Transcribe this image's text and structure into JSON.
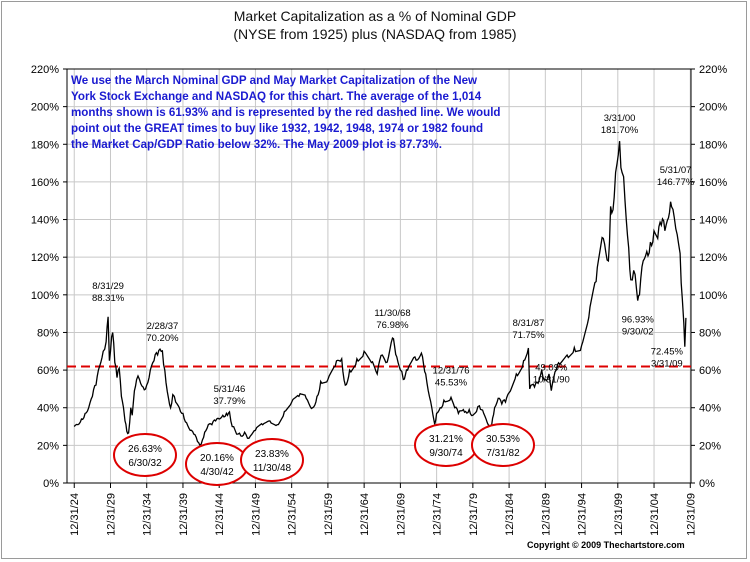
{
  "title_line1": "Market Capitalization as a % of Nominal GDP",
  "title_line2": "(NYSE from 1925) plus (NASDAQ from 1985)",
  "note": "We use the March Nominal GDP and May Market Capitalization of the New York Stock Exchange and NASDAQ for this chart.  The average of the 1,014 months shown is 61.93% and is represented by the red dashed line.  We would point out the GREAT times to buy like 1932, 1942, 1948, 1974 or 1982 found the Market Cap/GDP Ratio below 32%.  The May 2009 plot is 87.73%.",
  "copyright": "Copyright © 2009 Thechartstore.com",
  "colors": {
    "line": "#000000",
    "average": "#dd0000",
    "note_text": "#1a1ad0",
    "circle": "#dd0000",
    "grid": "#c8c8c8"
  },
  "chart_data": {
    "type": "line",
    "title": "Market Capitalization as a % of Nominal GDP",
    "subtitle": "(NYSE from 1925) plus (NASDAQ from 1985)",
    "ylim": [
      0,
      220
    ],
    "xlim": [
      "12/31/24",
      "12/31/09"
    ],
    "y_ticks": [
      "0%",
      "20%",
      "40%",
      "60%",
      "80%",
      "100%",
      "120%",
      "140%",
      "160%",
      "180%",
      "200%",
      "220%"
    ],
    "x_ticks": [
      "12/31/24",
      "12/31/29",
      "12/31/34",
      "12/31/39",
      "12/31/44",
      "12/31/49",
      "12/31/54",
      "12/31/59",
      "12/31/64",
      "12/31/69",
      "12/31/74",
      "12/31/79",
      "12/31/84",
      "12/31/89",
      "12/31/94",
      "12/31/99",
      "12/31/04",
      "12/31/09"
    ],
    "grid": true,
    "average_line": 61.93,
    "series": [
      {
        "points": [
          [
            1925.0,
            30
          ],
          [
            1925.5,
            31
          ],
          [
            1926.0,
            34
          ],
          [
            1926.5,
            37
          ],
          [
            1927.0,
            40
          ],
          [
            1927.5,
            46
          ],
          [
            1928.0,
            52
          ],
          [
            1928.5,
            62
          ],
          [
            1929.0,
            70
          ],
          [
            1929.4,
            75
          ],
          [
            1929.67,
            88.31
          ],
          [
            1929.85,
            65
          ],
          [
            1930.0,
            70
          ],
          [
            1930.3,
            80
          ],
          [
            1930.6,
            64
          ],
          [
            1930.9,
            56
          ],
          [
            1931.2,
            61
          ],
          [
            1931.5,
            46
          ],
          [
            1931.8,
            40
          ],
          [
            1932.0,
            33
          ],
          [
            1932.25,
            27.5
          ],
          [
            1932.5,
            26.63
          ],
          [
            1932.8,
            40
          ],
          [
            1933.0,
            36
          ],
          [
            1933.3,
            49
          ],
          [
            1933.6,
            55
          ],
          [
            1934.0,
            55
          ],
          [
            1934.5,
            51
          ],
          [
            1935.0,
            52
          ],
          [
            1935.5,
            60
          ],
          [
            1936.0,
            65
          ],
          [
            1936.5,
            68
          ],
          [
            1937.0,
            70
          ],
          [
            1937.17,
            70.2
          ],
          [
            1937.5,
            60
          ],
          [
            1938.0,
            45
          ],
          [
            1938.3,
            40
          ],
          [
            1938.6,
            47
          ],
          [
            1939.0,
            43
          ],
          [
            1939.5,
            40
          ],
          [
            1940.0,
            37
          ],
          [
            1940.5,
            32
          ],
          [
            1941.0,
            28
          ],
          [
            1941.5,
            26
          ],
          [
            1942.0,
            22
          ],
          [
            1942.33,
            20.16
          ],
          [
            1942.7,
            23
          ],
          [
            1943.0,
            27
          ],
          [
            1943.5,
            31
          ],
          [
            1944.0,
            31
          ],
          [
            1944.5,
            33
          ],
          [
            1945.0,
            34
          ],
          [
            1945.5,
            36
          ],
          [
            1946.0,
            37
          ],
          [
            1946.42,
            37.79
          ],
          [
            1946.8,
            30
          ],
          [
            1947.2,
            28
          ],
          [
            1947.6,
            26
          ],
          [
            1948.0,
            25
          ],
          [
            1948.5,
            27
          ],
          [
            1948.91,
            23.83
          ],
          [
            1949.3,
            25
          ],
          [
            1950.0,
            28
          ],
          [
            1951.0,
            31
          ],
          [
            1952.0,
            33
          ],
          [
            1953.0,
            31
          ],
          [
            1954.0,
            38
          ],
          [
            1955.0,
            43
          ],
          [
            1956.0,
            46
          ],
          [
            1957.0,
            45
          ],
          [
            1957.9,
            40
          ],
          [
            1958.5,
            46
          ],
          [
            1959.0,
            54
          ],
          [
            1960.0,
            55
          ],
          [
            1961.0,
            62
          ],
          [
            1961.9,
            66
          ],
          [
            1962.4,
            52
          ],
          [
            1963.0,
            60
          ],
          [
            1964.0,
            66
          ],
          [
            1965.0,
            70
          ],
          [
            1966.0,
            64
          ],
          [
            1966.8,
            58
          ],
          [
            1967.5,
            68
          ],
          [
            1968.0,
            64
          ],
          [
            1968.91,
            76.98
          ],
          [
            1969.5,
            67
          ],
          [
            1970.0,
            60
          ],
          [
            1970.4,
            55
          ],
          [
            1971.0,
            60
          ],
          [
            1972.0,
            67
          ],
          [
            1972.9,
            69
          ],
          [
            1973.5,
            58
          ],
          [
            1974.0,
            46
          ],
          [
            1974.5,
            36
          ],
          [
            1974.74,
            31.21
          ],
          [
            1975.0,
            37
          ],
          [
            1975.5,
            40
          ],
          [
            1976.0,
            44
          ],
          [
            1976.99,
            45.53
          ],
          [
            1977.5,
            40
          ],
          [
            1978.0,
            37
          ],
          [
            1978.7,
            39
          ],
          [
            1979.0,
            38
          ],
          [
            1979.5,
            39
          ],
          [
            1980.0,
            36
          ],
          [
            1980.5,
            38
          ],
          [
            1980.9,
            41
          ],
          [
            1981.5,
            37
          ],
          [
            1982.0,
            32
          ],
          [
            1982.58,
            30.53
          ],
          [
            1983.0,
            40
          ],
          [
            1983.5,
            45
          ],
          [
            1984.0,
            42
          ],
          [
            1984.5,
            43
          ],
          [
            1985.0,
            48
          ],
          [
            1986.0,
            58
          ],
          [
            1987.0,
            65
          ],
          [
            1987.67,
            71.75
          ],
          [
            1987.85,
            50
          ],
          [
            1988.5,
            51
          ],
          [
            1989.0,
            53
          ],
          [
            1989.5,
            60
          ],
          [
            1990.0,
            55
          ],
          [
            1990.5,
            58
          ],
          [
            1990.83,
            49.09
          ],
          [
            1991.5,
            60
          ],
          [
            1992.0,
            63
          ],
          [
            1993.0,
            68
          ],
          [
            1994.0,
            72
          ],
          [
            1995.0,
            73
          ],
          [
            1996.0,
            88
          ],
          [
            1997.0,
            107
          ],
          [
            1998.0,
            130
          ],
          [
            1998.7,
            118
          ],
          [
            1999.0,
            147
          ],
          [
            1999.5,
            152
          ],
          [
            1999.9,
            170
          ],
          [
            2000.25,
            181.7
          ],
          [
            2000.6,
            165
          ],
          [
            2001.0,
            150
          ],
          [
            2001.5,
            125
          ],
          [
            2001.8,
            108
          ],
          [
            2002.2,
            113
          ],
          [
            2002.75,
            96.93
          ],
          [
            2003.0,
            100
          ],
          [
            2003.5,
            118
          ],
          [
            2004.0,
            123
          ],
          [
            2004.5,
            128
          ],
          [
            2005.0,
            134
          ],
          [
            2005.5,
            130
          ],
          [
            2006.0,
            137
          ],
          [
            2006.5,
            134
          ],
          [
            2007.0,
            141
          ],
          [
            2007.42,
            146.77
          ],
          [
            2007.8,
            141
          ],
          [
            2008.2,
            132
          ],
          [
            2008.6,
            122
          ],
          [
            2008.9,
            98
          ],
          [
            2009.1,
            85
          ],
          [
            2009.25,
            72.45
          ],
          [
            2009.4,
            87.73
          ]
        ]
      }
    ],
    "annotations": [
      {
        "x": 1929.67,
        "y": 88.31,
        "date": "8/31/29",
        "value": "88.31%",
        "style": "plain"
      },
      {
        "x": 1937.17,
        "y": 70.2,
        "date": "2/28/37",
        "value": "70.20%",
        "style": "plain"
      },
      {
        "x": 1946.42,
        "y": 37.79,
        "date": "5/31/46",
        "value": "37.79%",
        "style": "plain"
      },
      {
        "x": 1968.91,
        "y": 76.98,
        "date": "11/30/68",
        "value": "76.98%",
        "style": "plain"
      },
      {
        "x": 1976.99,
        "y": 45.53,
        "date": "12/31/76",
        "value": "45.53%",
        "style": "plain"
      },
      {
        "x": 1987.67,
        "y": 71.75,
        "date": "8/31/87",
        "value": "71.75%",
        "style": "plain"
      },
      {
        "x": 1990.83,
        "y": 49.09,
        "date": "10/31/90",
        "value": "49.09%",
        "style": "plain"
      },
      {
        "x": 2000.25,
        "y": 181.7,
        "date": "3/31/00",
        "value": "181.70%",
        "style": "plain"
      },
      {
        "x": 2007.42,
        "y": 146.77,
        "date": "5/31/07",
        "value": "146.77%",
        "style": "plain"
      },
      {
        "x": 2002.75,
        "y": 96.93,
        "date": "9/30/02",
        "value": "96.93%",
        "style": "plain"
      },
      {
        "x": 2009.25,
        "y": 72.45,
        "date": "3/31/09",
        "value": "72.45%",
        "style": "plain"
      },
      {
        "x": 1932.5,
        "y": 26.63,
        "date": "6/30/32",
        "value": "26.63%",
        "style": "circle"
      },
      {
        "x": 1942.33,
        "y": 20.16,
        "date": "4/30/42",
        "value": "20.16%",
        "style": "circle"
      },
      {
        "x": 1948.91,
        "y": 23.83,
        "date": "11/30/48",
        "value": "23.83%",
        "style": "circle"
      },
      {
        "x": 1974.74,
        "y": 31.21,
        "date": "9/30/74",
        "value": "31.21%",
        "style": "circle"
      },
      {
        "x": 1982.58,
        "y": 30.53,
        "date": "7/31/82",
        "value": "30.53%",
        "style": "circle"
      }
    ]
  }
}
